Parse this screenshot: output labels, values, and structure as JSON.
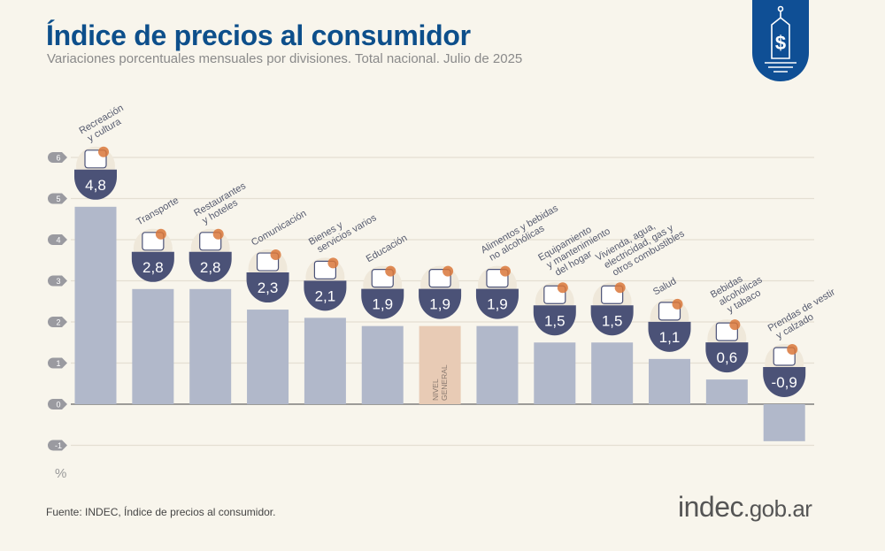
{
  "header": {
    "title": "Índice de precios al consumidor",
    "subtitle": "Variaciones porcentuales mensuales por divisiones. Total nacional. Julio de 2025",
    "logo_icon": "price-tag-dollar-icon"
  },
  "footer": {
    "source": "Fuente: INDEC, Índice de precios al consumidor.",
    "brand_main": "indec",
    "brand_suffix": ".gob.ar"
  },
  "colors": {
    "title": "#0d4f8b",
    "bar": "#b1b8ca",
    "bar_highlight": "#e8cbb5",
    "badge": "#4b5277",
    "icon_accent": "#d9773a"
  },
  "chart_data": {
    "type": "bar",
    "unit_label": "%",
    "ylim": [
      -1,
      6
    ],
    "yticks": [
      "-1",
      "0",
      "1",
      "2",
      "3",
      "4",
      "5",
      "6"
    ],
    "grid": true,
    "categories": [
      {
        "label": [
          "Recreación",
          "y cultura"
        ],
        "value": 4.8,
        "value_label": "4,8",
        "icon": "umbrella-sun-icon"
      },
      {
        "label": [
          "Transporte"
        ],
        "value": 2.8,
        "value_label": "2,8",
        "icon": "car-sube-icon"
      },
      {
        "label": [
          "Restaurantes",
          "y hoteles"
        ],
        "value": 2.8,
        "value_label": "2,8",
        "icon": "plate-cutlery-icon"
      },
      {
        "label": [
          "Comunicación"
        ],
        "value": 2.3,
        "value_label": "2,3",
        "icon": "phone-icon"
      },
      {
        "label": [
          "Bienes y",
          "servicios varios"
        ],
        "value": 2.1,
        "value_label": "2,1",
        "icon": "comb-scissors-icon"
      },
      {
        "label": [
          "Educación"
        ],
        "value": 1.9,
        "value_label": "1,9",
        "icon": "notebook-pen-icon"
      },
      {
        "label": [],
        "value": 1.9,
        "value_label": "1,9",
        "icon": "basket-icon",
        "highlight": true,
        "inner_label": [
          "NIVEL",
          "GENERAL"
        ]
      },
      {
        "label": [
          "Alimentos y bebidas",
          "no alcohólicas"
        ],
        "value": 1.9,
        "value_label": "1,9",
        "icon": "chicken-icon"
      },
      {
        "label": [
          "Equipamiento",
          "y mantenimiento",
          "del hogar"
        ],
        "value": 1.5,
        "value_label": "1,5",
        "icon": "washing-machine-icon"
      },
      {
        "label": [
          "Vivienda, agua,",
          "electricidad, gas y",
          "otros combustibles"
        ],
        "value": 1.5,
        "value_label": "1,5",
        "icon": "lightbulb-icon"
      },
      {
        "label": [
          "Salud"
        ],
        "value": 1.1,
        "value_label": "1,1",
        "icon": "first-aid-icon"
      },
      {
        "label": [
          "Bebidas",
          "alcohólicas",
          "y tabaco"
        ],
        "value": 0.6,
        "value_label": "0,6",
        "icon": "bottle-glass-icon"
      },
      {
        "label": [
          "Prendas de vestir",
          "y calzado"
        ],
        "value": -0.9,
        "value_label": "-0,9",
        "icon": "tshirt-shoe-icon"
      }
    ]
  }
}
